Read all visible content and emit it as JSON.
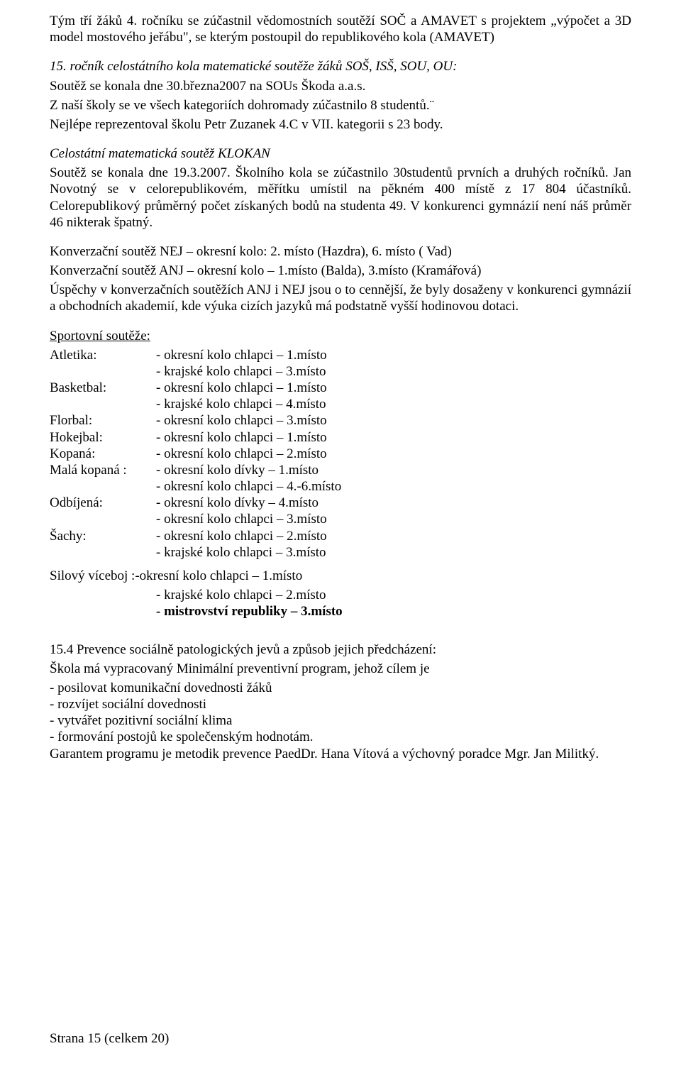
{
  "intro": {
    "p1": "Tým tří žáků 4. ročníku se zúčastnil vědomostních soutěží SOČ a AMAVET s projektem „výpočet a 3D model mostového jeřábu\", se kterým postoupil do republikového kola (AMAVET)"
  },
  "math15": {
    "title": "15. ročník celostátního kola matematické soutěže žáků SOŠ, ISŠ, SOU, OU:",
    "p1": "Soutěž se konala dne 30.března2007 na SOUs Škoda a.a.s.",
    "p2": "Z naší školy se ve všech kategoriích dohromady zúčastnilo 8 studentů.¨",
    "p3": "Nejlépe reprezentoval školu Petr Zuzanek 4.C v VII. kategorii s 23 body."
  },
  "klokan": {
    "title": "Celostátní matematická soutěž KLOKAN",
    "p1": "Soutěž se konala dne 19.3.2007. Školního kola se zúčastnilo 30studentů prvních a druhých ročníků. Jan Novotný se v celorepublikovém, měřítku umístil na pěkném 400 místě z 17 804 účastníků. Celorepublikový průměrný počet získaných bodů na studenta 49. V konkurenci gymnázií není náš průměr 46 nikterak špatný."
  },
  "konverzace": {
    "nej": "Konverzační soutěž NEJ – okresní kolo: 2. místo (Hazdra), 6. místo ( Vad)",
    "anj": "Konverzační soutěž ANJ – okresní kolo – 1.místo (Balda), 3.místo (Kramářová)",
    "note": "Úspěchy v konverzačních soutěžích ANJ i NEJ jsou o to cennější, že byly dosaženy v konkurenci gymnázií a obchodních akademií, kde výuka cizích jazyků má podstatně vyšší hodinovou dotaci."
  },
  "sports": {
    "heading": "Sportovní soutěže:",
    "rows": [
      {
        "label": "Atletika:",
        "result": "- okresní kolo chlapci – 1.místo"
      },
      {
        "label": "",
        "result": "- krajské kolo chlapci – 3.místo"
      },
      {
        "label": "Basketbal:",
        "result": "- okresní kolo chlapci – 1.místo"
      },
      {
        "label": "",
        "result": "- krajské kolo chlapci – 4.místo"
      },
      {
        "label": "Florbal:",
        "result": "- okresní kolo chlapci – 3.místo"
      },
      {
        "label": "Hokejbal:",
        "result": "- okresní kolo chlapci – 1.místo"
      },
      {
        "label": "Kopaná:",
        "result": "- okresní kolo chlapci – 2.místo"
      },
      {
        "label": "Malá kopaná :",
        "result": "- okresní kolo dívky – 1.místo"
      },
      {
        "label": "",
        "result": "- okresní kolo chlapci – 4.-6.místo"
      },
      {
        "label": "Odbíjená:",
        "result": "- okresní kolo dívky – 4.místo"
      },
      {
        "label": "",
        "result": "- okresní kolo chlapci – 3.místo"
      },
      {
        "label": "Šachy:",
        "result": "- okresní kolo chlapci – 2.místo"
      },
      {
        "label": "",
        "result": "- krajské kolo chlapci – 3.místo"
      }
    ],
    "silovy": {
      "l1": "Silový víceboj :-okresní kolo chlapci – 1.místo",
      "l2": "- krajské kolo chlapci – 2.místo",
      "l3": "- mistrovství republiky – 3.místo"
    }
  },
  "prevence": {
    "heading": "15.4 Prevence sociálně patologických jevů a způsob jejich předcházení:",
    "p1": "Škola má vypracovaný Minimální preventivní program, jehož cílem je",
    "items": [
      "- posilovat komunikační dovednosti žáků",
      "- rozvíjet sociální dovednosti",
      "- vytvářet pozitivní sociální klima",
      "-  formování postojů ke společenským hodnotám."
    ],
    "garant": "Garantem programu je metodik prevence PaedDr. Hana Vítová a výchovný poradce Mgr. Jan Militký."
  },
  "footer": "Strana 15 (celkem 20)"
}
